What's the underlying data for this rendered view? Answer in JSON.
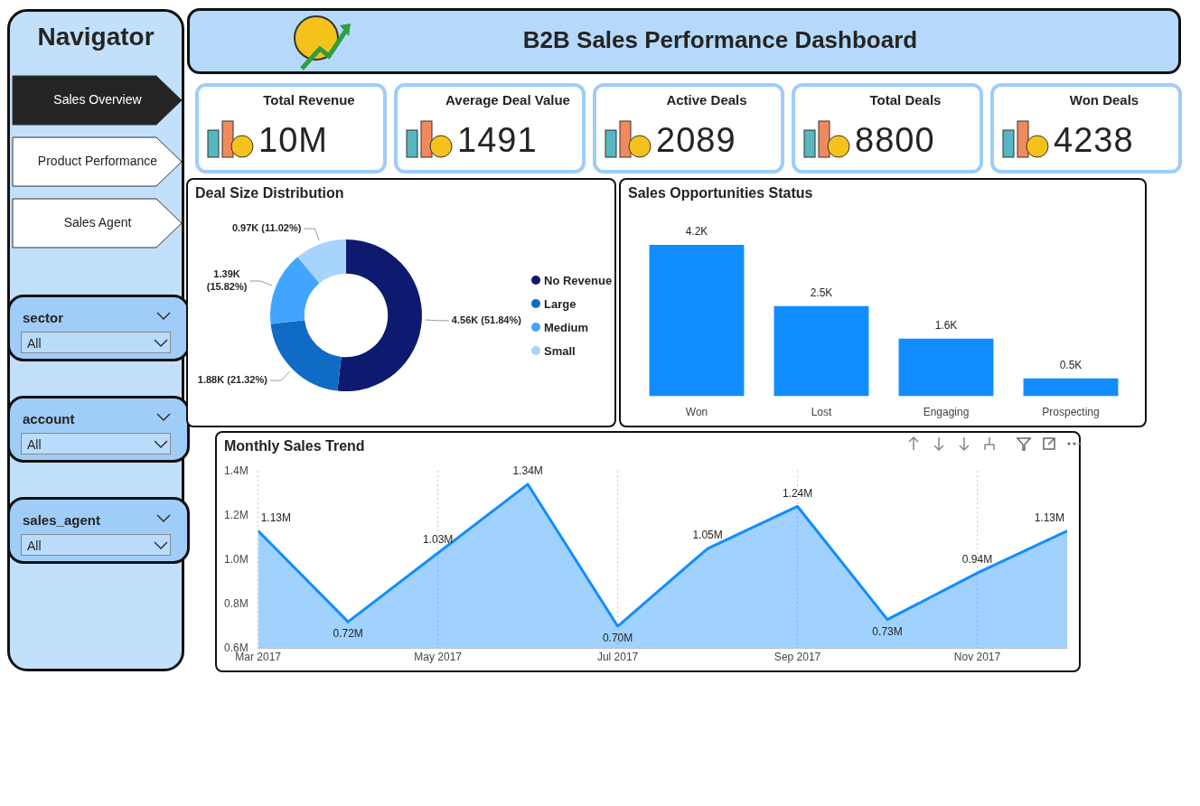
{
  "chart_data": [
    {
      "type": "other",
      "title": "Navigator",
      "annotations": [
        "Sales Overview",
        "Product Performance",
        "Sales Agent",
        "sector",
        "All",
        "account",
        "All",
        "sales_agent",
        "All"
      ]
    },
    {
      "type": "other",
      "title": "B2B Sales Performance Dashboard",
      "annotations": [
        "Total Revenue",
        "10M",
        "Average Deal Value",
        "1491",
        "Active Deals",
        "2089",
        "Total Deals",
        "8800",
        "Won Deals",
        "4238"
      ]
    },
    {
      "type": "donut",
      "title": "Deal Size Distribution",
      "categories": [
        "No Revenue",
        "Large",
        "Medium",
        "Small"
      ],
      "values": [
        4560,
        1880,
        1390,
        970
      ],
      "colors": [
        "#0d1a70",
        "#0f6bc4",
        "#42a5ff",
        "#a6d4fd"
      ],
      "value_labels": [
        "4.56K (51.84%)",
        "1.88K (21.32%)",
        "1.39K (15.82%)",
        "0.97K (11.02%)"
      ],
      "legend": "right"
    },
    {
      "type": "bar",
      "title": "Sales Opportunities Status",
      "categories": [
        "Won",
        "Lost",
        "Engaging",
        "Prospecting"
      ],
      "values": [
        4200,
        2500,
        1600,
        500
      ],
      "color": "#118dff",
      "value_labels": [
        "4.2K",
        "2.5K",
        "1.6K",
        "0.5K"
      ]
    },
    {
      "type": "area",
      "title": "Monthly Sales Trend",
      "x": [
        "2017-03",
        "2017-04",
        "2017-05",
        "2017-06",
        "2017-07",
        "2017-08",
        "2017-09",
        "2017-10",
        "2017-11",
        "2017-12"
      ],
      "series": [
        {
          "color": "#118dff",
          "values": [
            1.13,
            0.72,
            1.03,
            1.34,
            0.7,
            1.05,
            1.24,
            0.73,
            0.94,
            1.13
          ],
          "value_labels": [
            "1.13M",
            "0.72M",
            "1.03M",
            "1.34M",
            "0.70M",
            "1.05M",
            "1.24M",
            "0.73M",
            "0.94M",
            "1.13M"
          ]
        }
      ],
      "xlim": [
        "2017-03",
        "2017-12"
      ],
      "xticks": [
        {
          "value": "2017-03",
          "label": "Mar 2017"
        },
        {
          "value": "2017-05",
          "label": "May 2017"
        },
        {
          "value": "2017-07",
          "label": "Jul 2017"
        },
        {
          "value": "2017-09",
          "label": "Sep 2017"
        },
        {
          "value": "2017-11",
          "label": "Nov 2017"
        }
      ],
      "ylim": [
        0.6,
        1.4
      ],
      "yticks": [
        {
          "value": 0.6,
          "label": "0.6M"
        },
        {
          "value": 0.8,
          "label": "0.8M"
        },
        {
          "value": 1.0,
          "label": "1.0M"
        },
        {
          "value": 1.2,
          "label": "1.2M"
        },
        {
          "value": 1.4,
          "label": "1.4M"
        }
      ],
      "grid": "x",
      "marker": "none",
      "line_style": "solid"
    }
  ]
}
